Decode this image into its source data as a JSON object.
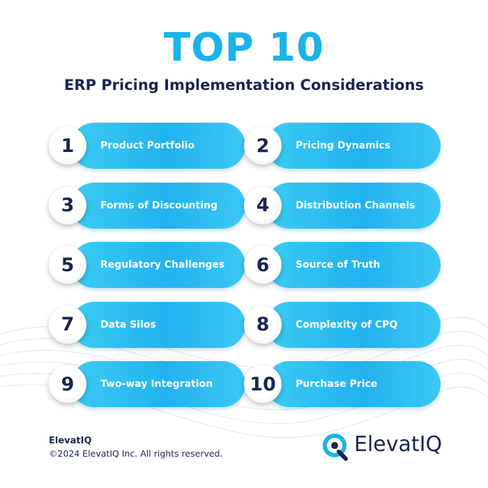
{
  "header": {
    "title": "TOP 10",
    "subtitle": "ERP Pricing Implementation Considerations"
  },
  "items": [
    {
      "number": "1",
      "label": "Product Portfolio"
    },
    {
      "number": "2",
      "label": "Pricing Dynamics"
    },
    {
      "number": "3",
      "label": "Forms of Discounting"
    },
    {
      "number": "4",
      "label": "Distribution Channels"
    },
    {
      "number": "5",
      "label": "Regulatory Challenges"
    },
    {
      "number": "6",
      "label": "Source of Truth"
    },
    {
      "number": "7",
      "label": "Data Silos"
    },
    {
      "number": "8",
      "label": "Complexity of CPQ"
    },
    {
      "number": "9",
      "label": "Two-way Integration"
    },
    {
      "number": "10",
      "label": "Purchase Price"
    }
  ],
  "footer": {
    "company": "ElevatIQ",
    "copyright": "©2024 ElevatIQ Inc. All rights reserved.",
    "logo_text": "ElevatIQ"
  }
}
